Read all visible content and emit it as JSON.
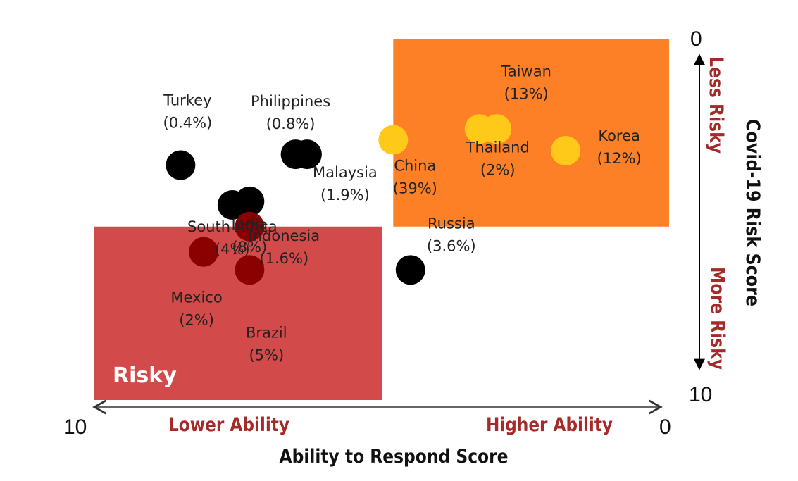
{
  "chart_data": {
    "type": "scatter",
    "xlabel": "Ability to Respond Score",
    "ylabel": "Covid-19 Risk Score",
    "x_range": [
      10,
      0
    ],
    "y_range": [
      0,
      10
    ],
    "x_tick_left": "10",
    "x_tick_right": "0",
    "y_tick_top": "0",
    "y_tick_bottom": "10",
    "x_low_label": "Lower Ability",
    "x_high_label": "Higher Ability",
    "y_low_label": "Less Risky",
    "y_high_label": "More Risky",
    "zones": [
      {
        "label": "",
        "color": "#fd8027",
        "x": [
          4.8,
          0
        ],
        "y": [
          0,
          5.2
        ]
      },
      {
        "label": "Risky",
        "color": "#d24a4a",
        "x": [
          10,
          5.0
        ],
        "y": [
          5.2,
          10
        ]
      }
    ],
    "points": [
      {
        "name": "Turkey",
        "share": "(0.4%)",
        "x": 8.5,
        "y": 3.5,
        "color": "#000000"
      },
      {
        "name": "Philippines",
        "share": "(0.8%)",
        "x": 6.5,
        "y": 3.2,
        "color": "#000000"
      },
      {
        "name": "South Africa",
        "share": "(4%)",
        "x": 7.6,
        "y": 4.6,
        "color": "#000000"
      },
      {
        "name": "India",
        "share": "(8%)",
        "x": 7.3,
        "y": 4.5,
        "color": "#000000"
      },
      {
        "name": "Malaysia",
        "share": "(1.9%)",
        "x": 6.3,
        "y": 3.2,
        "color": "#000000"
      },
      {
        "name": "Indonesia",
        "share": "(1.6%)",
        "x": 7.3,
        "y": 5.2,
        "color": "#8b0000"
      },
      {
        "name": "Mexico",
        "share": "(2%)",
        "x": 8.1,
        "y": 5.9,
        "color": "#8b0000"
      },
      {
        "name": "Brazil",
        "share": "(5%)",
        "x": 7.3,
        "y": 6.4,
        "color": "#8b0000"
      },
      {
        "name": "Russia",
        "share": "(3.6%)",
        "x": 4.5,
        "y": 6.4,
        "color": "#000000"
      },
      {
        "name": "China",
        "share": "(39%)",
        "x": 4.8,
        "y": 2.8,
        "color": "#ffc91a"
      },
      {
        "name": "Thailand",
        "share": "(2%)",
        "x": 3.3,
        "y": 2.5,
        "color": "#ffc91a"
      },
      {
        "name": "Taiwan",
        "share": "(13%)",
        "x": 3.0,
        "y": 2.5,
        "color": "#ffc91a"
      },
      {
        "name": "Korea",
        "share": "(12%)",
        "x": 1.8,
        "y": 3.1,
        "color": "#ffc91a"
      }
    ]
  }
}
